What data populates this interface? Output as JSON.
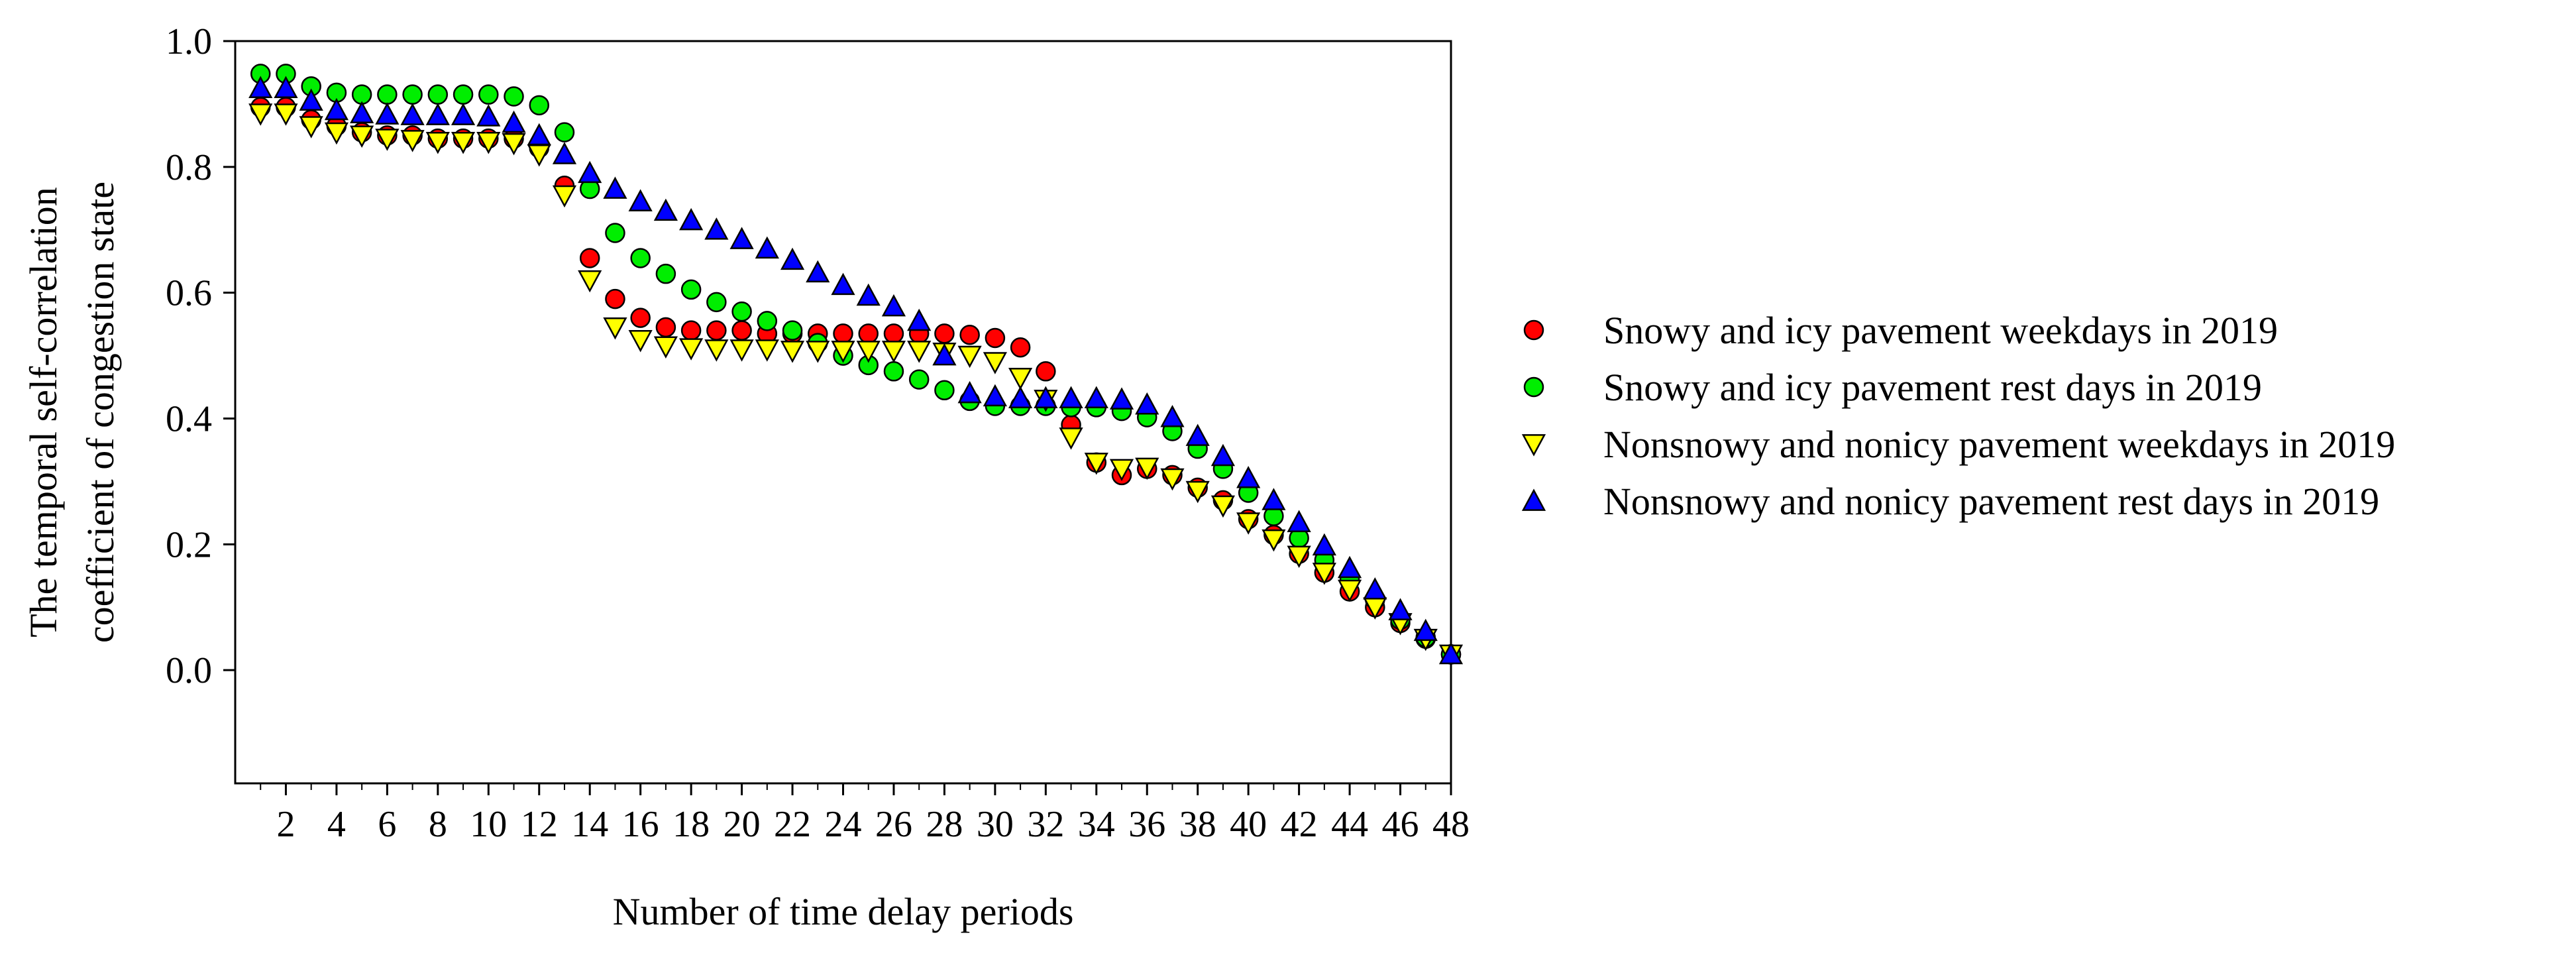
{
  "chart_data": {
    "type": "scatter",
    "title": "",
    "xlabel": "Number of time delay periods",
    "ylabel_lines": [
      "The temporal self-correlation",
      "coefficient of congestion state"
    ],
    "xlim": [
      0,
      48
    ],
    "ylim": [
      -0.18,
      1.0
    ],
    "x_ticks": [
      2,
      4,
      6,
      8,
      10,
      12,
      14,
      16,
      18,
      20,
      22,
      24,
      26,
      28,
      30,
      32,
      34,
      36,
      38,
      40,
      42,
      44,
      46,
      48
    ],
    "y_ticks": [
      0.0,
      0.2,
      0.4,
      0.6,
      0.8,
      1.0
    ],
    "y_tick_labels": [
      "0.0",
      "0.2",
      "0.4",
      "0.6",
      "0.8",
      "1.0"
    ],
    "legend_position": "right",
    "x": [
      1,
      2,
      3,
      4,
      5,
      6,
      7,
      8,
      9,
      10,
      11,
      12,
      13,
      14,
      15,
      16,
      17,
      18,
      19,
      20,
      21,
      22,
      23,
      24,
      25,
      26,
      27,
      28,
      29,
      30,
      31,
      32,
      33,
      34,
      35,
      36,
      37,
      38,
      39,
      40,
      41,
      42,
      43,
      44,
      45,
      46,
      47,
      48
    ],
    "series": [
      {
        "name": "Snowy and icy pavement weekdays in 2019",
        "marker": "circle",
        "color": "#ff0000",
        "values": [
          0.895,
          0.895,
          0.875,
          0.865,
          0.855,
          0.85,
          0.85,
          0.845,
          0.845,
          0.845,
          0.845,
          0.83,
          0.77,
          0.655,
          0.59,
          0.56,
          0.545,
          0.54,
          0.54,
          0.54,
          0.535,
          0.535,
          0.535,
          0.535,
          0.535,
          0.535,
          0.535,
          0.535,
          0.533,
          0.528,
          0.513,
          0.475,
          0.39,
          0.33,
          0.31,
          0.32,
          0.31,
          0.29,
          0.27,
          0.24,
          0.215,
          0.185,
          0.155,
          0.125,
          0.1,
          0.075,
          0.05,
          0.025
        ]
      },
      {
        "name": "Snowy and icy pavement rest days in 2019",
        "marker": "circle",
        "color": "#00ee00",
        "values": [
          0.948,
          0.948,
          0.928,
          0.918,
          0.915,
          0.915,
          0.915,
          0.915,
          0.915,
          0.915,
          0.912,
          0.898,
          0.855,
          0.765,
          0.695,
          0.655,
          0.63,
          0.605,
          0.585,
          0.57,
          0.555,
          0.54,
          0.52,
          0.5,
          0.485,
          0.475,
          0.462,
          0.445,
          0.428,
          0.42,
          0.42,
          0.42,
          0.418,
          0.418,
          0.412,
          0.402,
          0.38,
          0.352,
          0.32,
          0.282,
          0.245,
          0.21,
          0.175,
          0.145,
          0.112,
          0.08,
          0.052,
          0.025
        ]
      },
      {
        "name": "Nonsnowy and nonicy pavement weekdays in 2019",
        "marker": "triangle-down",
        "color": "#ffff00",
        "values": [
          0.885,
          0.885,
          0.865,
          0.855,
          0.85,
          0.845,
          0.843,
          0.84,
          0.84,
          0.84,
          0.838,
          0.82,
          0.755,
          0.62,
          0.545,
          0.525,
          0.515,
          0.512,
          0.51,
          0.51,
          0.51,
          0.508,
          0.508,
          0.508,
          0.508,
          0.508,
          0.508,
          0.505,
          0.5,
          0.49,
          0.465,
          0.43,
          0.37,
          0.33,
          0.32,
          0.322,
          0.305,
          0.285,
          0.262,
          0.235,
          0.208,
          0.182,
          0.155,
          0.128,
          0.1,
          0.075,
          0.05,
          0.025
        ]
      },
      {
        "name": "Nonsnowy and nonicy pavement rest days in 2019",
        "marker": "triangle-up",
        "color": "#0000ff",
        "values": [
          0.925,
          0.925,
          0.905,
          0.89,
          0.885,
          0.883,
          0.882,
          0.882,
          0.882,
          0.88,
          0.87,
          0.85,
          0.82,
          0.79,
          0.765,
          0.745,
          0.73,
          0.715,
          0.7,
          0.685,
          0.67,
          0.652,
          0.632,
          0.612,
          0.595,
          0.578,
          0.555,
          0.5,
          0.44,
          0.435,
          0.432,
          0.432,
          0.432,
          0.432,
          0.43,
          0.422,
          0.402,
          0.372,
          0.34,
          0.305,
          0.27,
          0.235,
          0.198,
          0.162,
          0.128,
          0.095,
          0.062,
          0.025
        ]
      }
    ]
  }
}
